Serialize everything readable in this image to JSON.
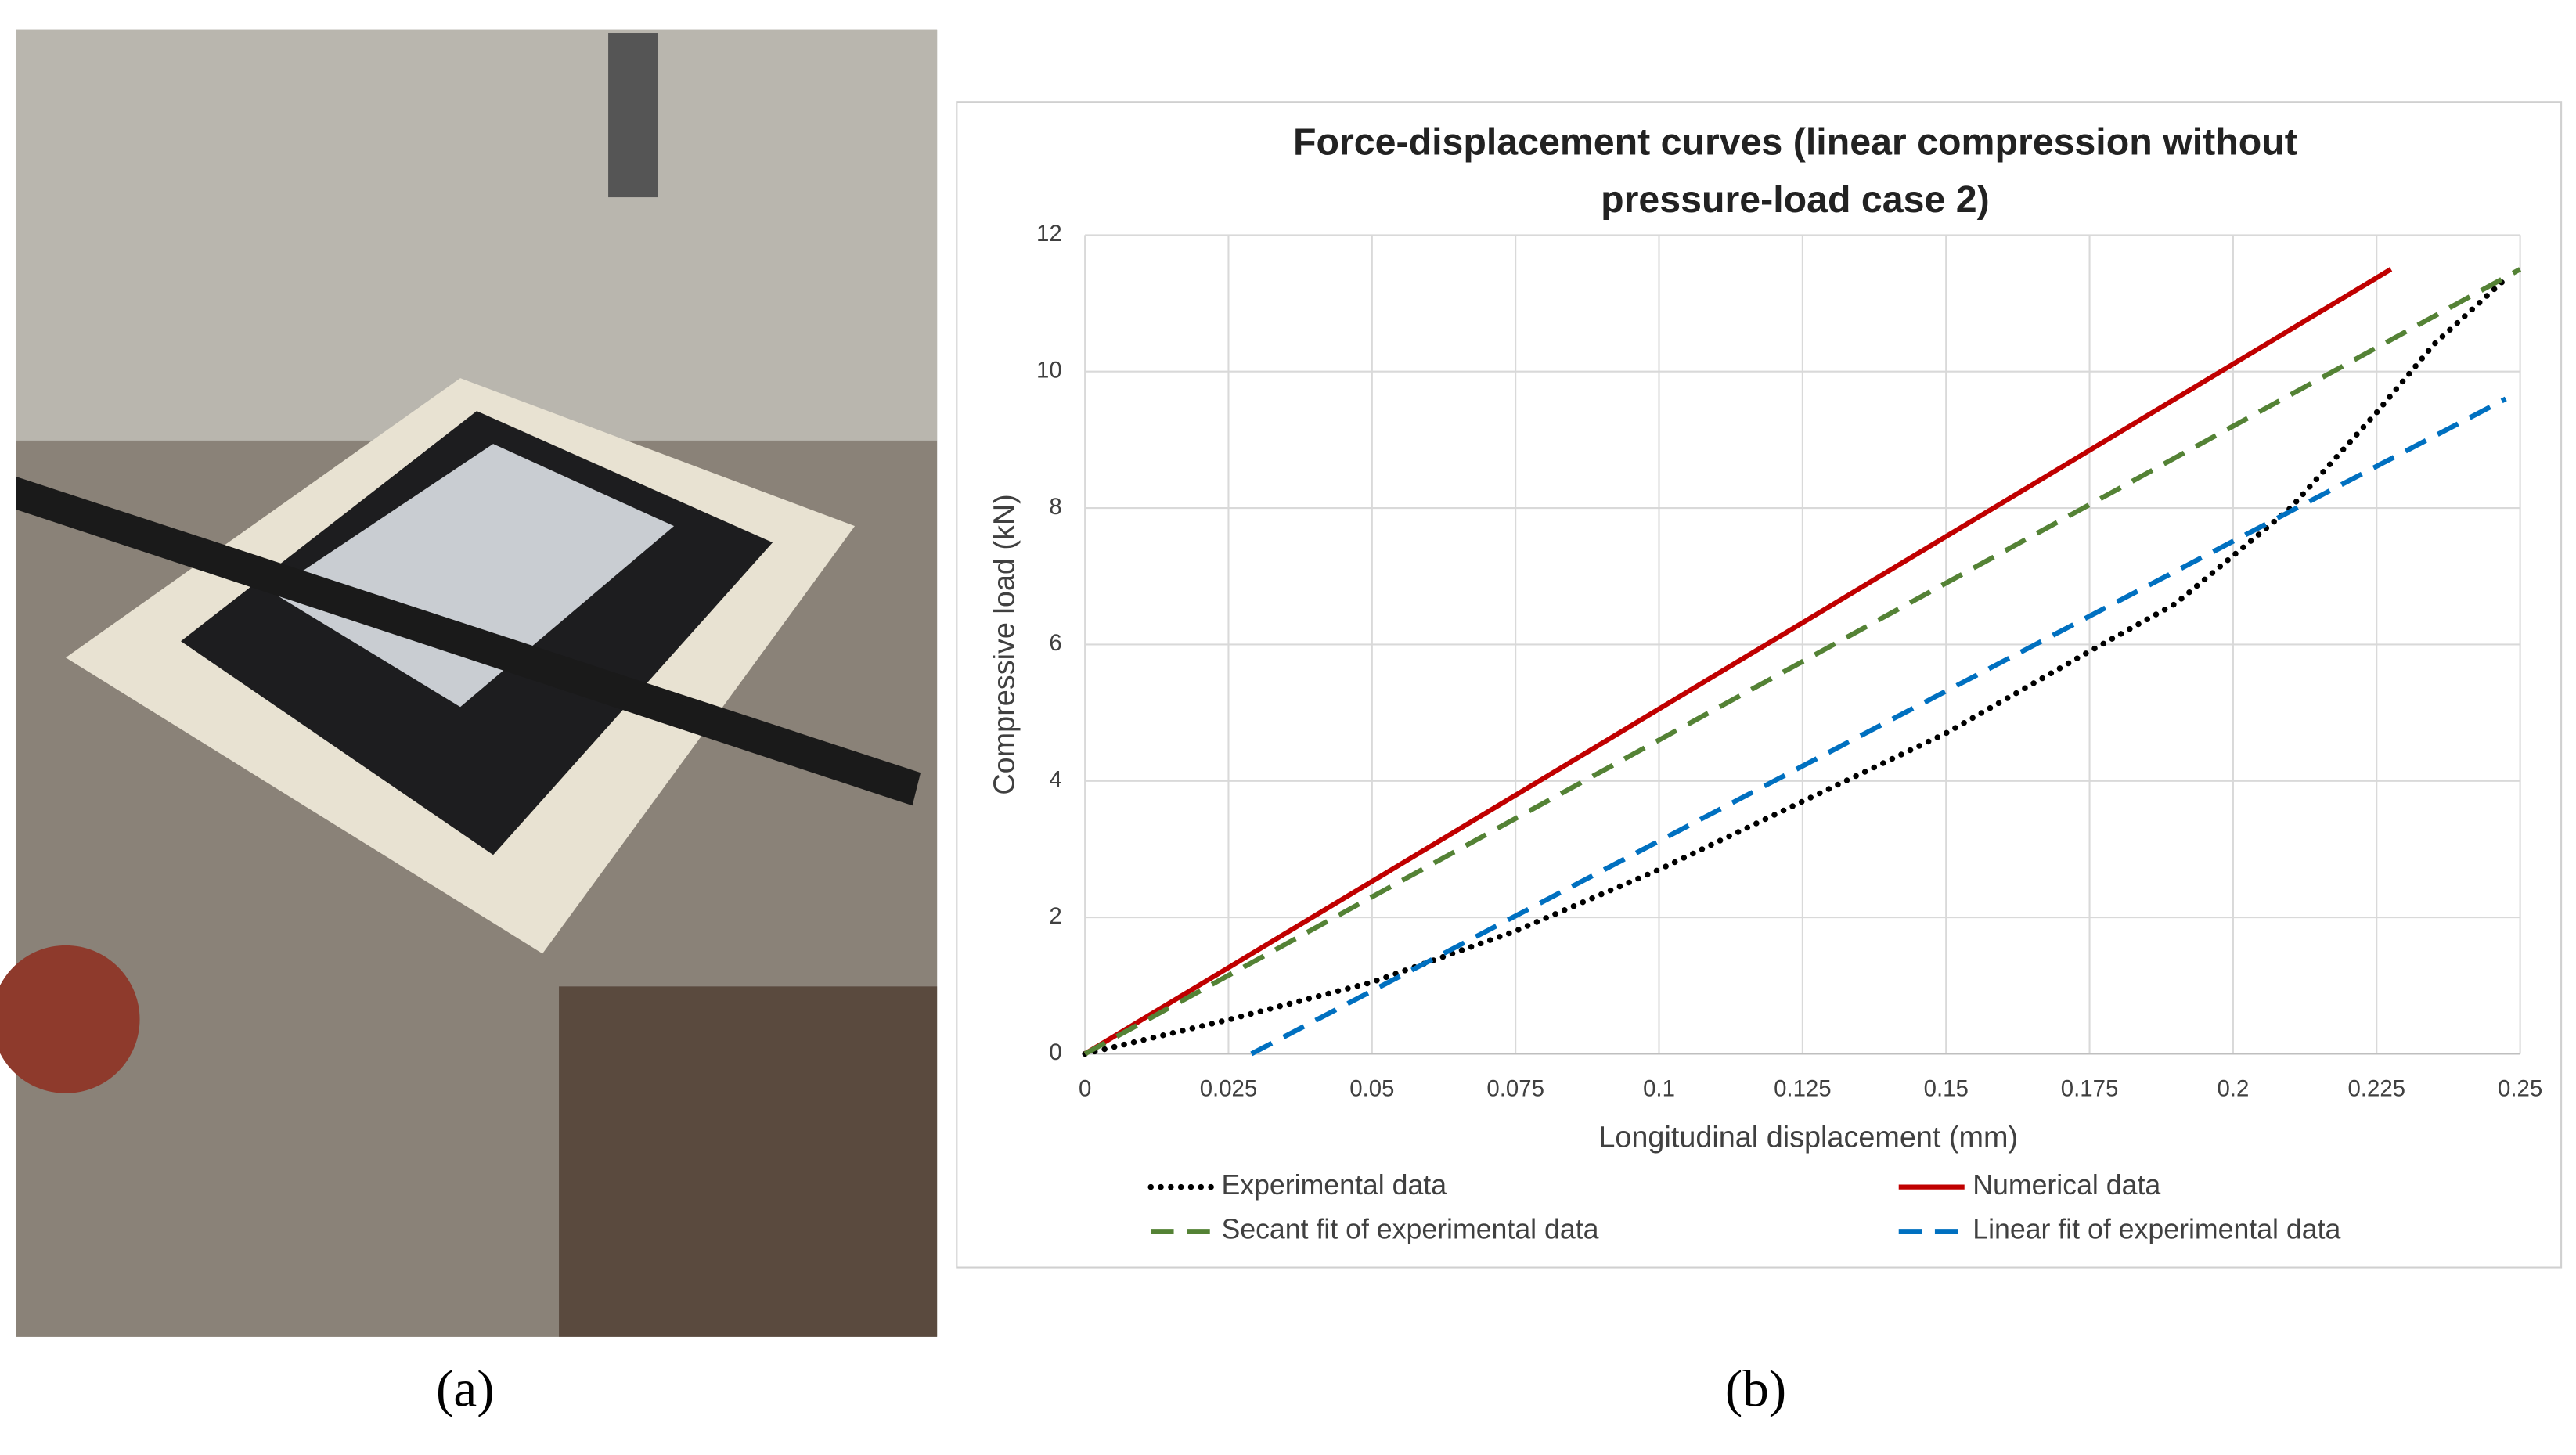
{
  "panel_labels": [
    "(a)",
    "(b)"
  ],
  "chart_data": {
    "type": "line",
    "title": [
      "Force-displacement curves  (linear compression without",
      "pressure-load case 2)"
    ],
    "x_label": "Longitudinal displacement (mm)",
    "y_label": "Compressive load (kN)",
    "xlim": [
      0,
      0.25
    ],
    "xticks": [
      0,
      0.025,
      0.05,
      0.075,
      0.1,
      0.125,
      0.15,
      0.175,
      0.2,
      0.225,
      0.25
    ],
    "ylim": [
      0,
      12
    ],
    "yticks": [
      0,
      2,
      4,
      6,
      8,
      10,
      12
    ],
    "grid": true,
    "legend": "bottom",
    "series": [
      {
        "name": "Experimental data",
        "color": "#000000",
        "dash": "dotted",
        "x": [
          0,
          0.025,
          0.05,
          0.075,
          0.1,
          0.125,
          0.15,
          0.175,
          0.19,
          0.2,
          0.21,
          0.225,
          0.235,
          0.248
        ],
        "values": [
          0,
          0.5,
          1.05,
          1.8,
          2.7,
          3.7,
          4.7,
          5.9,
          6.6,
          7.3,
          8.0,
          9.4,
          10.4,
          11.4
        ]
      },
      {
        "name": "Numerical data",
        "color": "#c00000",
        "dash": "solid",
        "x": [
          0,
          0.2275
        ],
        "values": [
          0,
          11.5
        ]
      },
      {
        "name": "Secant fit of experimental data",
        "color": "#548235",
        "dash": "dashed",
        "x": [
          0,
          0.25
        ],
        "values": [
          0,
          11.5
        ]
      },
      {
        "name": "Linear fit of experimental data",
        "color": "#0070c0",
        "dash": "dashed",
        "x": [
          0.029,
          0.2475
        ],
        "values": [
          0,
          9.6
        ]
      }
    ]
  }
}
